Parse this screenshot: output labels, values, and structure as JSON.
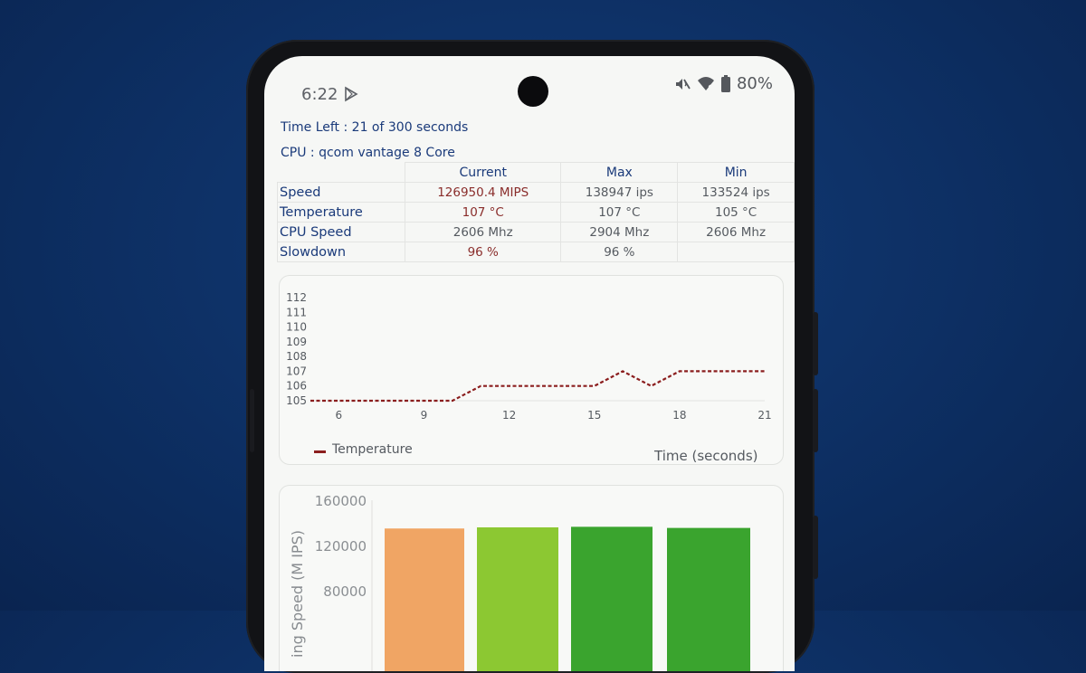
{
  "status_bar": {
    "time": "6:22",
    "battery": "80%",
    "icons": [
      "play-store-icon",
      "mute-icon",
      "wifi-icon",
      "battery-icon"
    ]
  },
  "info": {
    "time_left": "Time Left : 21 of 300 seconds",
    "cpu": "CPU : qcom vantage 8 Core"
  },
  "table": {
    "headers": [
      "",
      "Current",
      "Max",
      "Min"
    ],
    "rows": [
      {
        "label": "Speed",
        "current": "126950.4 MIPS",
        "max": "138947 ips",
        "min": "133524 ips"
      },
      {
        "label": "Temperature",
        "current": "107 °C",
        "max": "107 °C",
        "min": "105 °C"
      },
      {
        "label": "CPU Speed",
        "current": "2606 Mhz",
        "max": "2904 Mhz",
        "min": "2606 Mhz"
      },
      {
        "label": "Slowdown",
        "current": "96 %",
        "max": "96 %",
        "min": ""
      }
    ]
  },
  "chart_data": [
    {
      "type": "line",
      "series": [
        {
          "name": "Temperature",
          "color": "#8b1e1e",
          "x": [
            5,
            6,
            7,
            8,
            9,
            10,
            11,
            12,
            13,
            14,
            15,
            16,
            17,
            18,
            19,
            20,
            21
          ],
          "values": [
            105,
            105,
            105,
            105,
            105,
            105,
            106,
            106,
            106,
            106,
            106,
            107,
            106,
            107,
            107,
            107,
            107
          ]
        }
      ],
      "xticks": [
        "6",
        "9",
        "12",
        "15",
        "18",
        "21"
      ],
      "yticks": [
        "105",
        "106",
        "107",
        "108",
        "109",
        "110",
        "111",
        "112"
      ],
      "xlabel": "Time (seconds)",
      "ylabel": "",
      "xlim": [
        5,
        21
      ],
      "ylim": [
        105,
        112
      ],
      "legend": "bottom-left"
    },
    {
      "type": "bar",
      "categories": [
        "",
        "",
        "",
        ""
      ],
      "values": [
        135000,
        136000,
        136500,
        135500
      ],
      "colors": [
        "#f0a564",
        "#8cc832",
        "#3aa42e",
        "#3aa42e"
      ],
      "yticks": [
        "80000",
        "120000",
        "160000"
      ],
      "ylabel": "ing Speed (M IPS)",
      "ylim": [
        80000,
        160000
      ]
    }
  ]
}
